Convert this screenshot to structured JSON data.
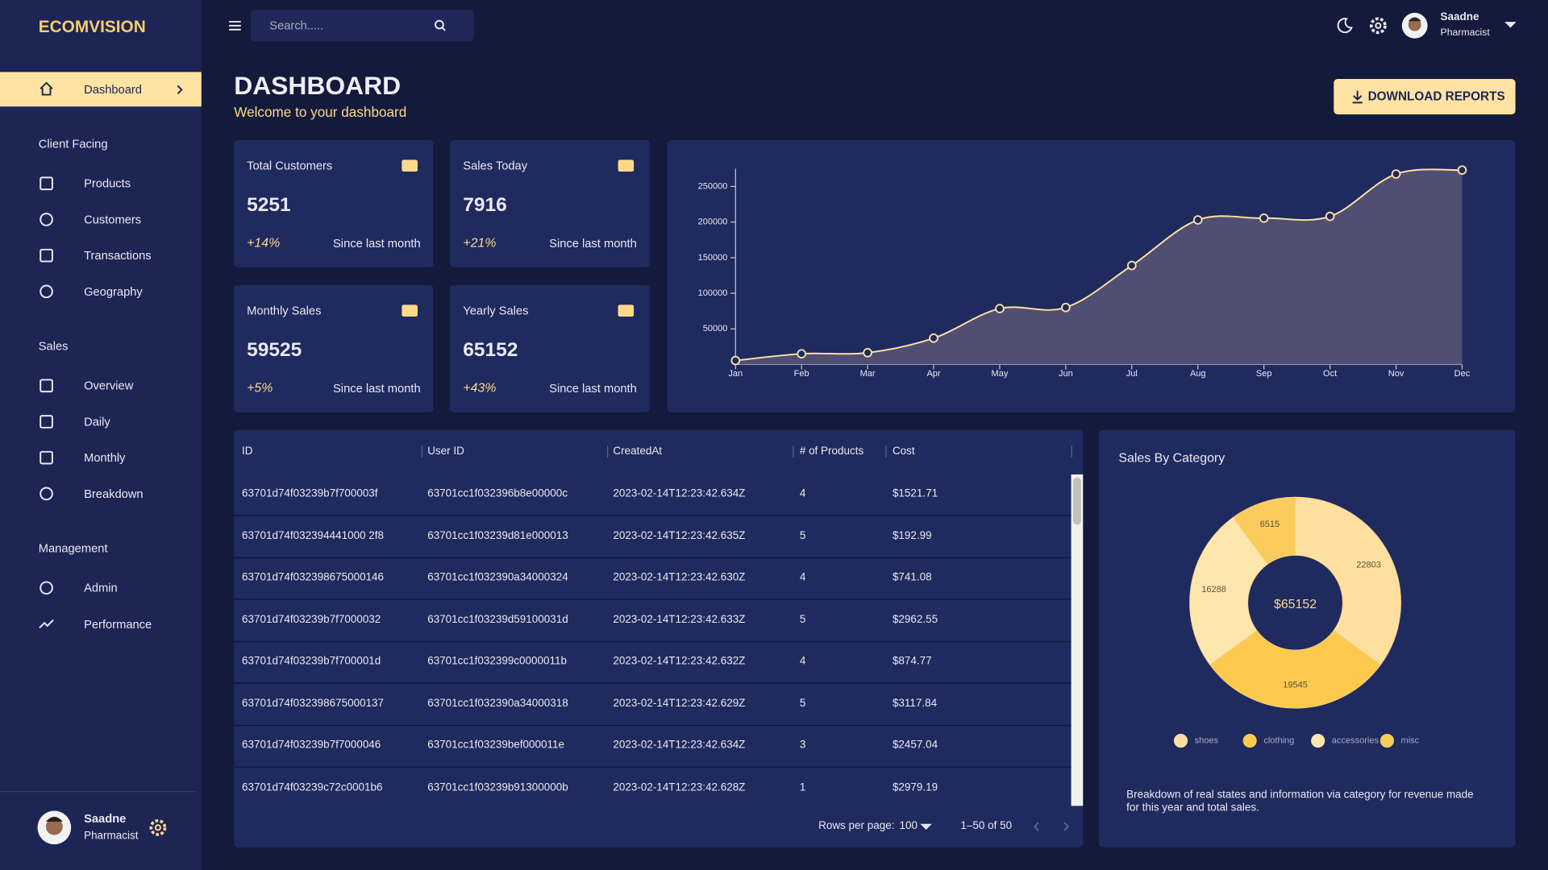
{
  "sidebar": {
    "brand": "ECOMVISION",
    "active": "Dashboard",
    "sections": [
      {
        "title": "Client Facing",
        "items": [
          "Products",
          "Customers",
          "Transactions",
          "Geography"
        ]
      },
      {
        "title": "Sales",
        "items": [
          "Overview",
          "Daily",
          "Monthly",
          "Breakdown"
        ]
      },
      {
        "title": "Management",
        "items": [
          "Admin",
          "Performance"
        ]
      }
    ],
    "user": {
      "name": "Saadne",
      "role": "Pharmacist"
    }
  },
  "header": {
    "search_placeholder": "Search.....",
    "user": {
      "name": "Saadne",
      "role": "Pharmacist"
    }
  },
  "page": {
    "title": "DASHBOARD",
    "subtitle": "Welcome to your dashboard",
    "button": "DOWNLOAD REPORTS"
  },
  "stats": [
    {
      "label": "Total Customers",
      "value": 5251,
      "change": "+14%",
      "note": "Since last month"
    },
    {
      "label": "Sales Today",
      "value": 7916,
      "change": "+21%",
      "note": "Since last month"
    },
    {
      "label": "Monthly Sales",
      "value": 59525,
      "change": "+5%",
      "note": "Since last month"
    },
    {
      "label": "Yearly Sales",
      "value": 65152,
      "change": "+43%",
      "note": "Since last month"
    }
  ],
  "line_chart": {
    "type": "line",
    "x": [
      "Jan",
      "Feb",
      "Mar",
      "Apr",
      "May",
      "Jun",
      "Jul",
      "Aug",
      "Sep",
      "Oct",
      "Nov",
      "Dec"
    ],
    "values": [
      5500,
      15000,
      16500,
      37000,
      78500,
      80000,
      139000,
      203000,
      205500,
      208000,
      267500,
      273000
    ],
    "ylim": [
      0,
      275000
    ],
    "yticks": [
      50000,
      100000,
      150000,
      200000,
      250000
    ],
    "color": "#ffe3a3",
    "area": true
  },
  "table": {
    "columns": [
      "ID",
      "User ID",
      "CreatedAt",
      "# of Products",
      "Cost"
    ],
    "rows": [
      [
        "63701d74f03239b7f700003f",
        "63701cc1f032396b8e00000c",
        "2023-02-14T12:23:42.634Z",
        4,
        "$1521.71"
      ],
      [
        "63701d74f032394441000 2f8",
        "63701cc1f03239d81e000013",
        "2023-02-14T12:23:42.635Z",
        5,
        "$192.99"
      ],
      [
        "63701d74f032398675000146",
        "63701cc1f032390a34000324",
        "2023-02-14T12:23:42.630Z",
        4,
        "$741.08"
      ],
      [
        "63701d74f03239b7f7000032",
        "63701cc1f03239d59100031d",
        "2023-02-14T12:23:42.633Z",
        5,
        "$2962.55"
      ],
      [
        "63701d74f03239b7f700001d",
        "63701cc1f032399c0000011b",
        "2023-02-14T12:23:42.632Z",
        4,
        "$874.77"
      ],
      [
        "63701d74f032398675000137",
        "63701cc1f032390a34000318",
        "2023-02-14T12:23:42.629Z",
        5,
        "$3117.84"
      ],
      [
        "63701d74f03239b7f7000046",
        "63701cc1f03239bef000011e",
        "2023-02-14T12:23:42.634Z",
        3,
        "$2457.04"
      ],
      [
        "63701d74f03239c72c0001b6",
        "63701cc1f03239b91300000b",
        "2023-02-14T12:23:42.628Z",
        1,
        "$2979.19"
      ]
    ],
    "footer": {
      "rows_per_page_label": "Rows per page:",
      "rows_per_page": 100,
      "range": "1–50 of 50"
    }
  },
  "pie_chart": {
    "type": "pie",
    "title": "Sales By Category",
    "categories": [
      "shoes",
      "clothing",
      "accessories",
      "misc"
    ],
    "values": [
      22803,
      19545,
      16288,
      6515
    ],
    "colors": [
      "#ffe0a0",
      "#fdc94f",
      "#ffe6ad",
      "#fbcc5c"
    ],
    "center_label": "$65152",
    "description": "Breakdown of real states and information via category for revenue made for this year and total sales."
  }
}
